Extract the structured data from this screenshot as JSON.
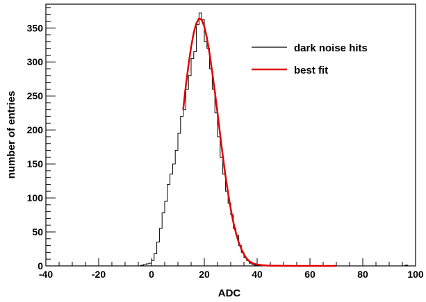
{
  "chart_data": {
    "type": "line",
    "title": "",
    "xlabel": "ADC",
    "ylabel": "number of entries",
    "xlim": [
      -40,
      100
    ],
    "ylim": [
      0,
      385
    ],
    "x_ticks": [
      -40,
      -20,
      0,
      20,
      40,
      60,
      80,
      100
    ],
    "y_ticks": [
      0,
      50,
      100,
      150,
      200,
      250,
      300,
      350
    ],
    "grid": false,
    "legend_position": "top-right",
    "series": [
      {
        "name": "dark noise hits",
        "color": "#000000",
        "style": "step",
        "x": [
          -5,
          -4,
          -3,
          -2,
          -1,
          0,
          1,
          2,
          3,
          4,
          5,
          6,
          7,
          8,
          9,
          10,
          11,
          12,
          13,
          14,
          15,
          16,
          17,
          18,
          19,
          20,
          21,
          22,
          23,
          24,
          25,
          26,
          27,
          28,
          29,
          30,
          31,
          32,
          33,
          34,
          35,
          36,
          37,
          38,
          39,
          40,
          41,
          42,
          43,
          44,
          45,
          46,
          47,
          48,
          49,
          50,
          55,
          60,
          65,
          70,
          75,
          80,
          85,
          90,
          95,
          96,
          97
        ],
        "y": [
          0,
          1,
          2,
          3,
          4,
          8,
          18,
          35,
          55,
          78,
          95,
          120,
          135,
          150,
          170,
          195,
          220,
          230,
          260,
          280,
          305,
          315,
          355,
          372,
          362,
          330,
          320,
          290,
          260,
          225,
          190,
          160,
          135,
          110,
          92,
          75,
          55,
          45,
          30,
          20,
          12,
          8,
          4,
          2,
          1,
          1,
          1,
          0,
          0,
          1,
          0,
          0,
          1,
          0,
          0,
          0,
          0,
          0,
          0,
          0,
          0,
          0,
          0,
          0,
          0,
          1,
          0
        ]
      },
      {
        "name": "best fit",
        "color": "#e00000",
        "style": "line",
        "x": [
          12,
          13,
          14,
          15,
          16,
          17,
          18,
          19,
          20,
          21,
          22,
          23,
          24,
          25,
          26,
          27,
          28,
          29,
          30,
          31,
          32,
          33,
          34,
          35,
          36,
          37,
          38,
          39,
          40,
          41,
          42,
          44,
          46,
          48,
          50,
          55,
          60,
          65,
          70
        ],
        "y": [
          230,
          265,
          295,
          322,
          343,
          357,
          364,
          362,
          352,
          335,
          312,
          285,
          256,
          225,
          193,
          162,
          133,
          107,
          84,
          64,
          48,
          35,
          25,
          17,
          11,
          7,
          4.5,
          3,
          2,
          1.5,
          1,
          0.5,
          0.3,
          0.2,
          0.1,
          0,
          0,
          0,
          0
        ]
      }
    ]
  }
}
